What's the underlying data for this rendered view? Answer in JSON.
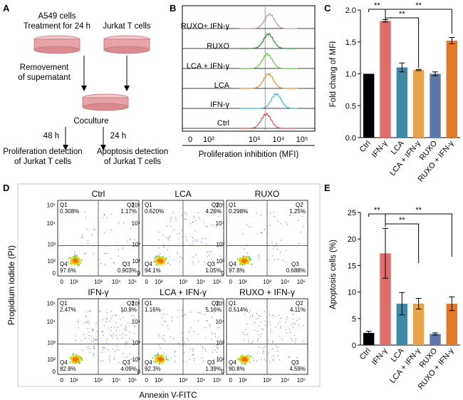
{
  "panels": {
    "A": {
      "letter": "A",
      "a549_line1": "A549 cells",
      "a549_line2": "Treatment for 24 h",
      "jurkat": "Jurkat T cells",
      "removal_line1": "Removement",
      "removal_line2": "of supernatant",
      "coculture": "Coculture",
      "t48": "48 h",
      "t24": "24 h",
      "prolif_line1": "Proliferation detection",
      "prolif_line2": "of Jurkat T cells",
      "apop_line1": "Apoptosis detection",
      "apop_line2": "of Jurkat T cells",
      "dish_color": "#e8a3a8"
    },
    "B": {
      "letter": "B",
      "xlabel": "Proliferation inhibition (MFI)",
      "ticks": [
        "0",
        "10²",
        "10³",
        "10⁴",
        "10⁵"
      ],
      "tracks": [
        {
          "label": "RUXO+ IFN-γ",
          "color": "#c9949a",
          "peak": 3.55
        },
        {
          "label": "RUXO",
          "color": "#2e7d32",
          "peak": 3.5
        },
        {
          "label": "LCA + IFN-γ",
          "color": "#5ec93c",
          "peak": 3.45
        },
        {
          "label": "LCA",
          "color": "#e08a36",
          "peak": 3.5
        },
        {
          "label": "IFN-γ",
          "color": "#42b4e6",
          "peak": 3.85
        },
        {
          "label": "Ctrl",
          "color": "#d84a4a",
          "peak": 3.4
        }
      ]
    },
    "C": {
      "letter": "C",
      "chart_data": {
        "type": "bar",
        "categories": [
          "Ctrl",
          "IFN-γ",
          "LCA",
          "LCA + IFN-γ",
          "RUXO",
          "RUXO + IFN-γ"
        ],
        "values": [
          1.0,
          1.83,
          1.1,
          1.06,
          1.0,
          1.52
        ],
        "errors": [
          0.0,
          0.02,
          0.07,
          0.01,
          0.03,
          0.05
        ],
        "colors": [
          "#000000",
          "#e06b6b",
          "#3f89a8",
          "#e8a24a",
          "#5b78a8",
          "#e07a2a"
        ],
        "ylabel": "Fold chang of MFI",
        "ylim": [
          0,
          2.0
        ],
        "yticks": [
          "0.0",
          "0.5",
          "1.0",
          "1.5",
          "2.0"
        ],
        "significance": [
          "**",
          "**",
          "**"
        ]
      }
    },
    "D": {
      "letter": "D",
      "ylabel": "Propidium iodide (PI)",
      "xlabel": "Annexin V-FITC",
      "xticks": [
        "0",
        "10²",
        "10³",
        "10⁴",
        "10⁵"
      ],
      "yticks": [
        "10⁵",
        "10⁴",
        "10³",
        "10²",
        "0"
      ],
      "plots": [
        {
          "title": "Ctrl",
          "q1": "Q1",
          "q1v": "0.308%",
          "q2": "Q2",
          "q2v": "1.17%",
          "q3": "Q3",
          "q3v": "0.903%",
          "q4": "Q4",
          "q4v": "97.6%"
        },
        {
          "title": "LCA",
          "q1": "Q1",
          "q1v": "0.620%",
          "q2": "Q2",
          "q2v": "4.26%",
          "q3": "Q3",
          "q3v": "1.05%",
          "q4": "Q4",
          "q4v": "94.1%"
        },
        {
          "title": "RUXO",
          "q1": "Q1",
          "q1v": "0.298%",
          "q2": "Q2",
          "q2v": "1.25%",
          "q3": "Q3",
          "q3v": "0.688%",
          "q4": "Q4",
          "q4v": "97.8%"
        },
        {
          "title": "IFN-γ",
          "q1": "Q1",
          "q1v": "2.47%",
          "q2": "Q2",
          "q2v": "10.9%",
          "q3": "Q3",
          "q3v": "4.09%",
          "q4": "Q4",
          "q4v": "82.8%"
        },
        {
          "title": "LCA + IFN-γ",
          "q1": "Q1",
          "q1v": "1.16%",
          "q2": "Q2",
          "q2v": "5.16%",
          "q3": "Q3",
          "q3v": "1.39%",
          "q4": "Q4",
          "q4v": "92.3%"
        },
        {
          "title": "RUXO + IFN-γ",
          "q1": "Q1",
          "q1v": "0.514%",
          "q2": "Q2",
          "q2v": "4.11%",
          "q3": "Q3",
          "q3v": "4.59%",
          "q4": "Q4",
          "q4v": "90.8%"
        }
      ]
    },
    "E": {
      "letter": "E",
      "chart_data": {
        "type": "bar",
        "categories": [
          "Ctrl",
          "IFN-γ",
          "LCA",
          "LCA + IFN-γ",
          "RUXO",
          "RUXO + IFN-γ"
        ],
        "values": [
          2.3,
          17.3,
          7.8,
          7.8,
          2.1,
          7.8
        ],
        "errors": [
          0.3,
          4.7,
          2.1,
          1.0,
          0.2,
          1.3
        ],
        "colors": [
          "#000000",
          "#e06b6b",
          "#3f89a8",
          "#e8a24a",
          "#5b78a8",
          "#e07a2a"
        ],
        "ylabel": "Apoptosis cells (%)",
        "ylim": [
          0,
          25
        ],
        "yticks": [
          "0",
          "5",
          "10",
          "15",
          "20",
          "25"
        ],
        "significance": [
          "**",
          "**",
          "**"
        ]
      }
    }
  }
}
